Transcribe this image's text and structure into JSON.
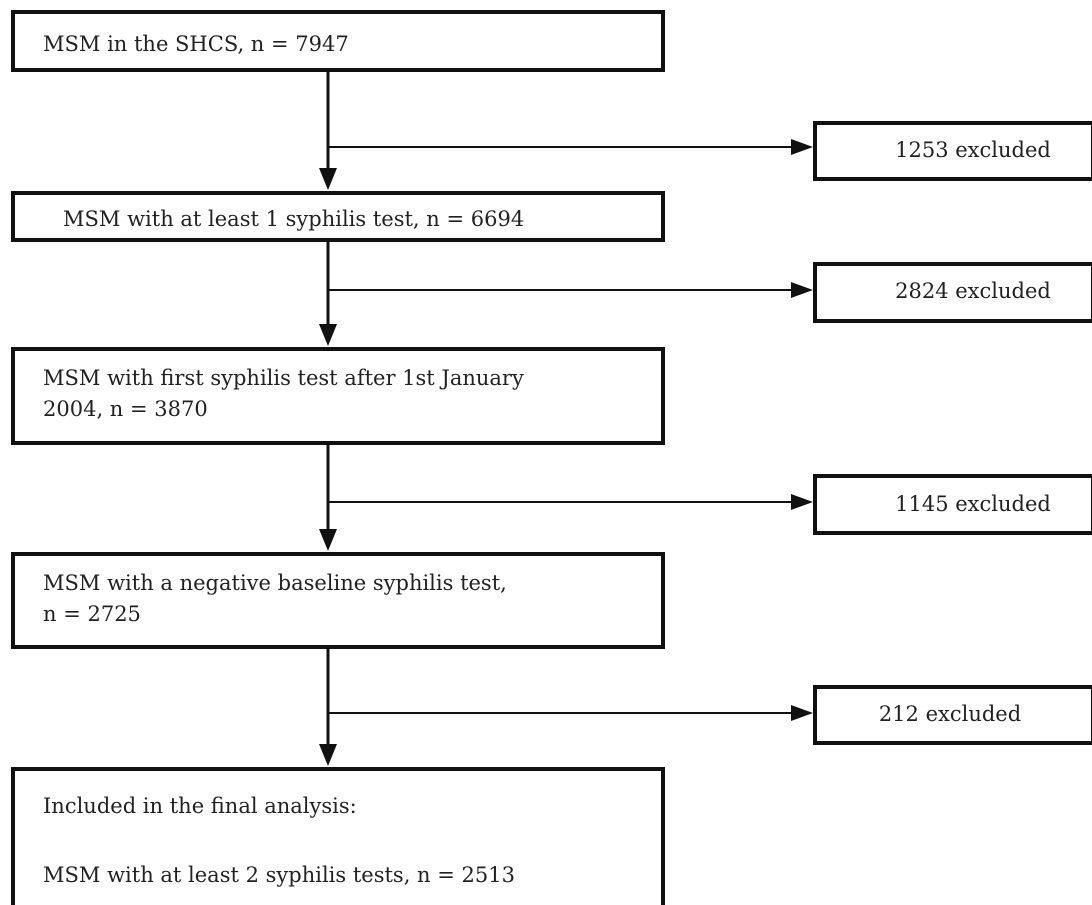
{
  "flowchart": {
    "steps": [
      {
        "lines": [
          "MSM in the SHCS, n = 7947"
        ]
      },
      {
        "lines": [
          "MSM with at least 1 syphilis test, n = 6694"
        ]
      },
      {
        "lines": [
          "MSM with first syphilis test after 1st January",
          "2004, n = 3870"
        ]
      },
      {
        "lines": [
          "MSM with a negative baseline syphilis test,",
          "n = 2725"
        ]
      },
      {
        "lines": [
          "Included in the final analysis:",
          "MSM with at least 2 syphilis tests, n = 2513"
        ]
      }
    ],
    "exclusions": [
      {
        "label": "1253 excluded"
      },
      {
        "label": "2824 excluded"
      },
      {
        "label": "1145 excluded"
      },
      {
        "label": "212 excluded"
      }
    ]
  }
}
